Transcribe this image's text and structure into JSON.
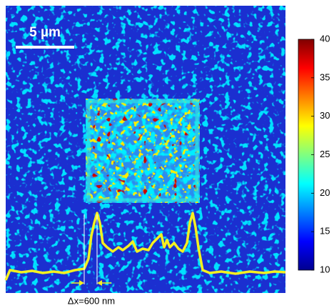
{
  "chart_data": {
    "type": "heatmap",
    "colormap": "jet",
    "scale_bar_label": "5 µm",
    "annotation": "Δx=600 nm",
    "zlim": [
      10,
      40
    ],
    "zticks": [
      10,
      15,
      20,
      25,
      30,
      35,
      40
    ]
  }
}
